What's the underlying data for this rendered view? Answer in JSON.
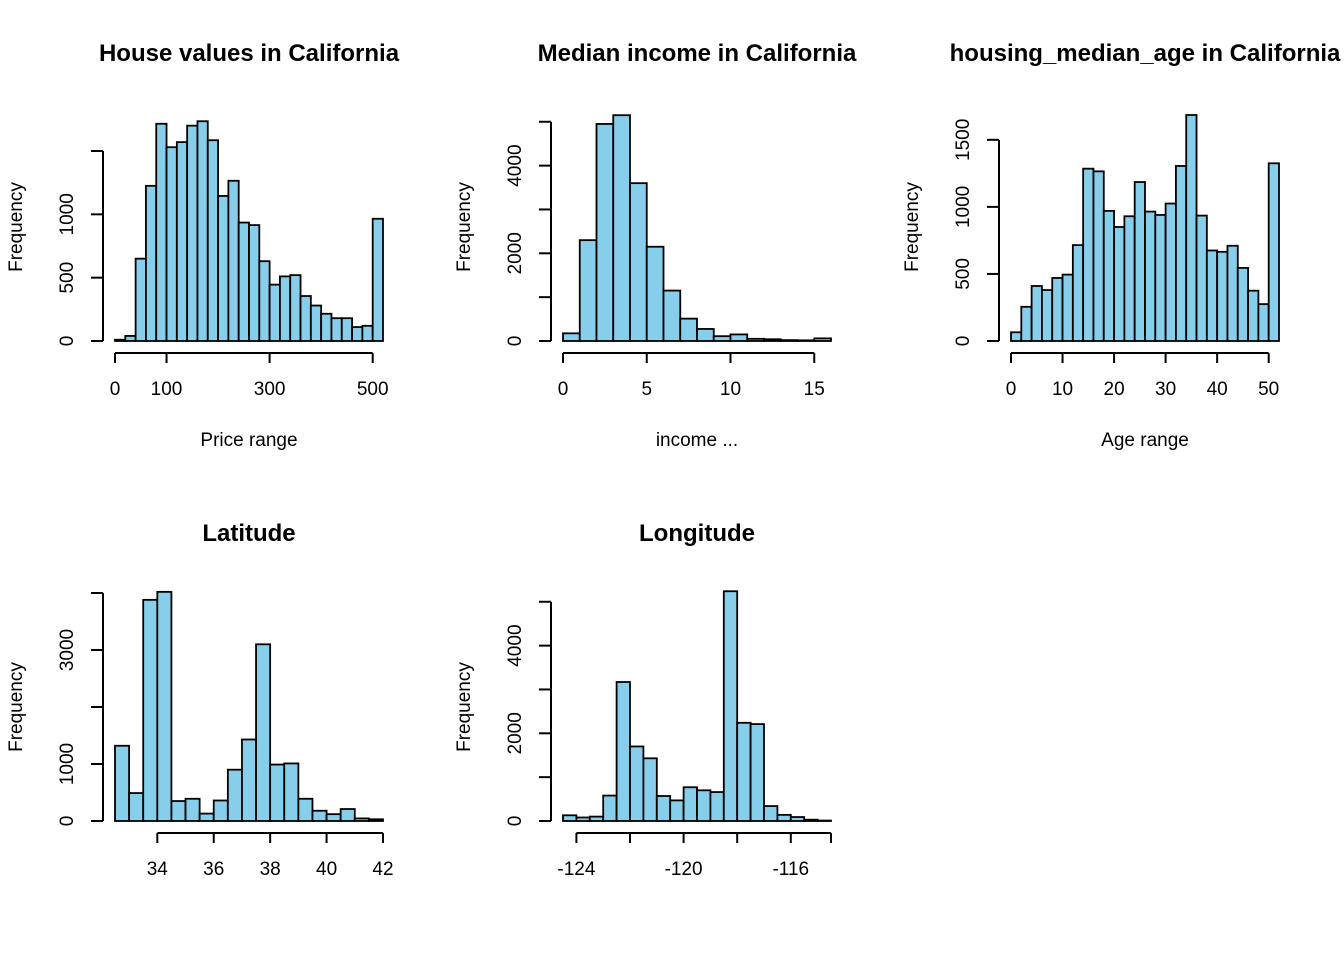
{
  "colors": {
    "bar_fill": "#87ceeb",
    "bar_stroke": "#000000"
  },
  "chart_data": [
    {
      "type": "bar",
      "title": "House values in California",
      "xlabel": "Price range",
      "ylabel": "Frequency",
      "bin_start": 0,
      "bin_width": 20,
      "values": [
        10,
        40,
        650,
        1225,
        1715,
        1530,
        1570,
        1700,
        1735,
        1585,
        1145,
        1265,
        935,
        915,
        630,
        445,
        510,
        520,
        355,
        280,
        215,
        180,
        180,
        110,
        120,
        965
      ],
      "xlim": [
        0,
        520
      ],
      "ylim": [
        0,
        1800
      ],
      "x_ticks": [
        0,
        100,
        300,
        500
      ],
      "y_ticks": [
        0,
        500,
        1000,
        1500
      ],
      "y_tick_labels": [
        "0",
        "500",
        "1000",
        ""
      ]
    },
    {
      "type": "bar",
      "title": "Median income in California",
      "xlabel": "income ...",
      "ylabel": "Frequency",
      "bin_start": 0,
      "bin_width": 1,
      "values": [
        175,
        2300,
        4950,
        5150,
        3600,
        2150,
        1150,
        510,
        275,
        110,
        150,
        50,
        40,
        20,
        15,
        60
      ],
      "xlim": [
        0,
        16
      ],
      "ylim": [
        0,
        5200
      ],
      "x_ticks": [
        0,
        5,
        10,
        15
      ],
      "y_ticks": [
        0,
        1000,
        2000,
        3000,
        4000,
        5000
      ],
      "y_tick_labels": [
        "0",
        "",
        "2000",
        "",
        "4000",
        ""
      ]
    },
    {
      "type": "bar",
      "title": "housing_median_age in California",
      "xlabel": "Age range",
      "ylabel": "Frequency",
      "bin_start": 0,
      "bin_width": 2,
      "values": [
        65,
        255,
        410,
        380,
        470,
        495,
        715,
        1285,
        1265,
        970,
        850,
        930,
        1185,
        965,
        940,
        1025,
        1305,
        1685,
        935,
        675,
        665,
        710,
        545,
        375,
        275,
        1325
      ],
      "xlim": [
        0,
        52
      ],
      "ylim": [
        0,
        1700
      ],
      "x_ticks": [
        0,
        10,
        20,
        30,
        40,
        50
      ],
      "y_ticks": [
        0,
        500,
        1000,
        1500
      ],
      "y_tick_labels": [
        "0",
        "500",
        "1000",
        "1500"
      ]
    },
    {
      "type": "bar",
      "title": "Latitude",
      "xlabel": "",
      "ylabel": "Frequency",
      "bin_start": 32.5,
      "bin_width": 0.5,
      "values": [
        1320,
        490,
        3880,
        4020,
        350,
        390,
        130,
        360,
        900,
        1430,
        3100,
        990,
        1010,
        390,
        180,
        120,
        210,
        45,
        30
      ],
      "xlim": [
        32.5,
        42
      ],
      "ylim": [
        0,
        4000
      ],
      "x_ticks": [
        34,
        36,
        38,
        40,
        42
      ],
      "y_ticks": [
        0,
        1000,
        2000,
        3000,
        4000
      ],
      "y_tick_labels": [
        "0",
        "1000",
        "",
        "3000",
        ""
      ]
    },
    {
      "type": "bar",
      "title": "Longitude",
      "xlabel": "",
      "ylabel": "Frequency",
      "bin_start": -124.5,
      "bin_width": 0.5,
      "values": [
        130,
        80,
        100,
        580,
        3170,
        1700,
        1430,
        570,
        470,
        770,
        700,
        660,
        5240,
        2240,
        2210,
        340,
        140,
        90,
        30,
        10
      ],
      "xlim": [
        -124.5,
        -114.5
      ],
      "ylim": [
        0,
        5200
      ],
      "x_ticks": [
        -124,
        -122,
        -120,
        -118,
        -116,
        -114.5
      ],
      "y_ticks": [
        0,
        1000,
        2000,
        3000,
        4000,
        5000
      ],
      "y_tick_labels": [
        "0",
        "",
        "2000",
        "",
        "4000",
        ""
      ],
      "x_tick_labels": [
        "-124",
        "",
        "-120",
        "",
        "-116",
        ""
      ]
    }
  ]
}
